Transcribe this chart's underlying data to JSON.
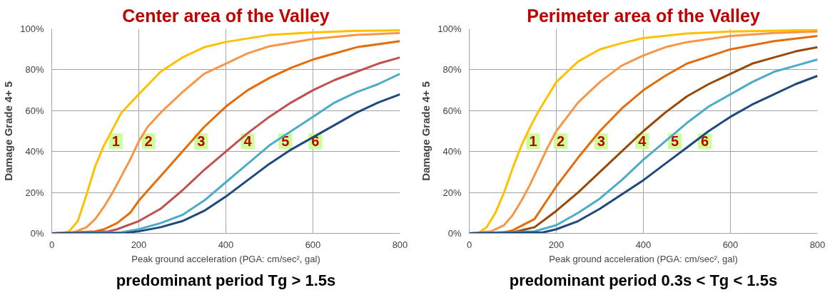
{
  "chart_data": [
    {
      "type": "line",
      "title": "Center area of the Valley",
      "xlabel": "Peak ground acceleration (PGA: cm/sec², gal)",
      "ylabel": "Damage Grade 4+ 5",
      "annotations": [
        "predominant period Tg > 1.5s"
      ],
      "xlim": [
        0,
        800
      ],
      "xticks": [
        0,
        200,
        400,
        600,
        800
      ],
      "ylim": [
        0,
        100
      ],
      "yticks": [
        {
          "value": 0,
          "label": "0%"
        },
        {
          "value": 20,
          "label": "20%"
        },
        {
          "value": 40,
          "label": "40%"
        },
        {
          "value": 60,
          "label": "60%"
        },
        {
          "value": 80,
          "label": "80%"
        },
        {
          "value": 100,
          "label": "100%"
        }
      ],
      "grid": true,
      "legend": false,
      "series": [
        {
          "name": "1",
          "color": "#ffc000",
          "x": [
            0,
            20,
            40,
            60,
            80,
            100,
            120,
            160,
            200,
            250,
            300,
            350,
            400,
            500,
            600,
            700,
            800
          ],
          "values": [
            0,
            0,
            1,
            6,
            19,
            33,
            43,
            59,
            68,
            79,
            86,
            91,
            93.6,
            97,
            98.3,
            99,
            99.3
          ]
        },
        {
          "name": "2",
          "color": "#f79646",
          "x": [
            0,
            50,
            80,
            100,
            120,
            140,
            160,
            180,
            200,
            220,
            250,
            300,
            350,
            400,
            450,
            500,
            600,
            700,
            800
          ],
          "values": [
            0,
            0.5,
            3,
            7,
            13,
            20,
            28,
            36,
            45,
            52,
            59,
            69,
            78,
            83,
            88,
            91.5,
            95,
            97,
            98
          ]
        },
        {
          "name": "3",
          "color": "#e46c0a",
          "x": [
            0,
            100,
            120,
            150,
            180,
            200,
            250,
            300,
            350,
            400,
            450,
            500,
            550,
            600,
            650,
            700,
            800
          ],
          "values": [
            0,
            1,
            2,
            5,
            10,
            16,
            28,
            40,
            52,
            62,
            70,
            76,
            81,
            85,
            88,
            91,
            94
          ]
        },
        {
          "name": "4",
          "color": "#c0504d",
          "x": [
            0,
            130,
            150,
            200,
            250,
            300,
            350,
            400,
            450,
            500,
            550,
            600,
            650,
            700,
            750,
            800
          ],
          "values": [
            0,
            1,
            2,
            6,
            12,
            21,
            31,
            40,
            49,
            57,
            64,
            70,
            75,
            79,
            83,
            86
          ]
        },
        {
          "name": "5",
          "color": "#4bacc6",
          "x": [
            0,
            160,
            200,
            250,
            300,
            350,
            400,
            450,
            500,
            550,
            600,
            650,
            700,
            750,
            800
          ],
          "values": [
            0,
            0.5,
            2,
            5,
            9,
            16,
            25,
            34,
            43,
            50,
            57,
            64,
            69,
            73,
            78
          ]
        },
        {
          "name": "6",
          "color": "#1f497d",
          "x": [
            0,
            170,
            200,
            250,
            300,
            350,
            400,
            450,
            500,
            550,
            600,
            650,
            700,
            750,
            800
          ],
          "values": [
            0,
            0.2,
            1,
            3,
            6,
            11,
            18,
            26,
            34,
            41,
            47,
            53,
            59,
            64,
            68
          ]
        }
      ]
    },
    {
      "type": "line",
      "title": "Perimeter area of the Valley",
      "xlabel": "Peak ground acceleration (PGA: cm/sec², gal)",
      "ylabel": "Damage Grade 4+ 5",
      "annotations": [
        "predominant period 0.3s < Tg < 1.5s"
      ],
      "xlim": [
        0,
        800
      ],
      "xticks": [
        0,
        200,
        400,
        600,
        800
      ],
      "ylim": [
        0,
        100
      ],
      "yticks": [
        {
          "value": 0,
          "label": "0%"
        },
        {
          "value": 20,
          "label": "20%"
        },
        {
          "value": 40,
          "label": "40%"
        },
        {
          "value": 60,
          "label": "60%"
        },
        {
          "value": 80,
          "label": "80%"
        },
        {
          "value": 100,
          "label": "100%"
        }
      ],
      "grid": true,
      "legend": false,
      "series": [
        {
          "name": "1",
          "color": "#ffc000",
          "x": [
            0,
            20,
            40,
            60,
            80,
            100,
            120,
            140,
            160,
            180,
            200,
            250,
            300,
            350,
            400,
            500,
            600,
            800
          ],
          "values": [
            0,
            0,
            3,
            10,
            20,
            32,
            43,
            52,
            60,
            67,
            74,
            84,
            90,
            93,
            95.5,
            97.7,
            98.7,
            99.5
          ]
        },
        {
          "name": "2",
          "color": "#f79646",
          "x": [
            0,
            50,
            80,
            100,
            120,
            140,
            160,
            180,
            200,
            250,
            300,
            350,
            400,
            450,
            500,
            600,
            700,
            800
          ],
          "values": [
            0,
            1,
            4,
            9,
            16,
            24,
            33,
            42,
            50,
            64,
            74,
            82,
            87,
            91,
            93.5,
            96.5,
            98,
            98.7
          ]
        },
        {
          "name": "3",
          "color": "#e46c0a",
          "x": [
            0,
            80,
            100,
            150,
            200,
            250,
            300,
            350,
            400,
            450,
            500,
            600,
            700,
            800
          ],
          "values": [
            0,
            0.5,
            1.5,
            7,
            23,
            37,
            50,
            61,
            70,
            77,
            83,
            90,
            94,
            96.5
          ]
        },
        {
          "name": "4",
          "color": "#984807",
          "x": [
            0,
            100,
            150,
            200,
            250,
            300,
            350,
            400,
            450,
            500,
            550,
            600,
            650,
            700,
            750,
            800
          ],
          "values": [
            0,
            0.5,
            3,
            11,
            20,
            30,
            40,
            50,
            59,
            67,
            73,
            78,
            83,
            86,
            89,
            91
          ]
        },
        {
          "name": "5",
          "color": "#4bacc6",
          "x": [
            0,
            150,
            200,
            250,
            300,
            350,
            400,
            450,
            500,
            550,
            600,
            650,
            700,
            750,
            800
          ],
          "values": [
            0,
            1,
            4,
            10,
            17,
            26,
            36,
            45,
            54,
            62,
            68,
            74,
            79,
            82,
            85
          ]
        },
        {
          "name": "6",
          "color": "#1f497d",
          "x": [
            0,
            170,
            200,
            250,
            300,
            350,
            400,
            450,
            500,
            550,
            600,
            650,
            700,
            750,
            800
          ],
          "values": [
            0,
            0.5,
            2,
            6,
            12,
            19,
            26,
            34,
            42,
            50,
            57,
            63,
            68,
            73,
            77
          ]
        }
      ]
    }
  ]
}
